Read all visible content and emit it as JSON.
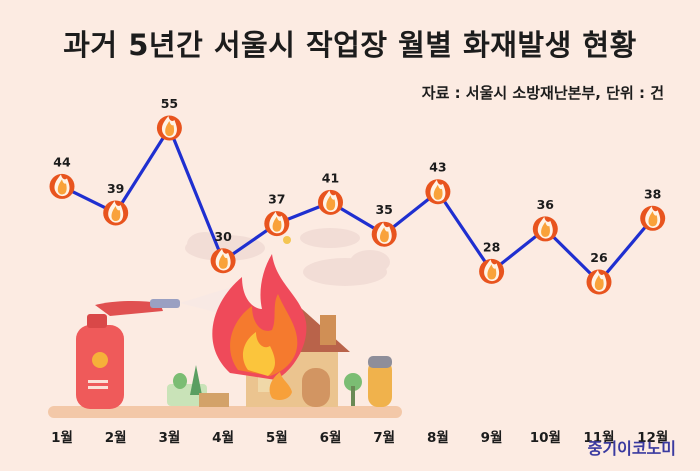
{
  "page": {
    "title": "과거 5년간 서울시 작업장 월별 화재발생 현황",
    "source": "자료 : 서울시 소방재난본부, 단위 : 건",
    "watermark": "중기이코노미"
  },
  "colors": {
    "background": "#fcebe2",
    "line": "#1f2fd0",
    "marker": "#e8541e",
    "marker_inner": "#f9a23a",
    "text": "#1c1c1c"
  },
  "chart_data": {
    "type": "line",
    "title": "과거 5년간 서울시 작업장 월별 화재발생 현황",
    "subtitle": "자료 : 서울시 소방재난본부, 단위 : 건",
    "categories": [
      "1월",
      "2월",
      "3월",
      "4월",
      "5월",
      "6월",
      "7월",
      "8월",
      "9월",
      "10월",
      "11월",
      "12월"
    ],
    "series": [
      {
        "values": [
          44,
          39,
          55,
          30,
          37,
          41,
          35,
          43,
          28,
          36,
          26,
          38
        ]
      }
    ],
    "marker": "flame-icon",
    "grid": false,
    "legend": "none"
  }
}
